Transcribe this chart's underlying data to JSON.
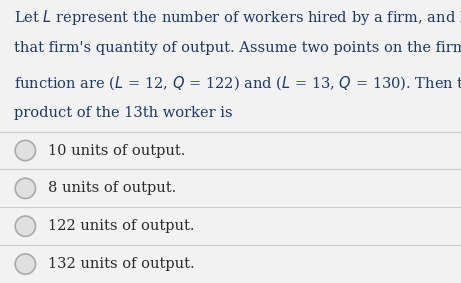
{
  "question_lines": [
    "Let $\\mathit{L}$ represent the number of workers hired by a firm, and let $\\mathit{Q}$ represent",
    "that firm's quantity of output. Assume two points on the firm's production",
    "function are ($\\mathit{L}$ = 12, $\\mathit{Q}$ = 122) and ($\\mathit{L}$ = 13, $\\mathit{Q}$ = 130). Then the marginal",
    "product of the 13th worker is"
  ],
  "choices": [
    "10 units of output.",
    "8 units of output.",
    "122 units of output.",
    "132 units of output."
  ],
  "bg_color": "#f2f2f2",
  "question_color": "#1a3a6b",
  "choice_color": "#2b2b2b",
  "line_color": "#cccccc",
  "radio_outer": "#aaaaaa",
  "radio_inner": "#e0e0e0",
  "question_fontsize": 10.5,
  "choice_fontsize": 10.5,
  "fig_width": 4.61,
  "fig_height": 2.83,
  "dpi": 100
}
